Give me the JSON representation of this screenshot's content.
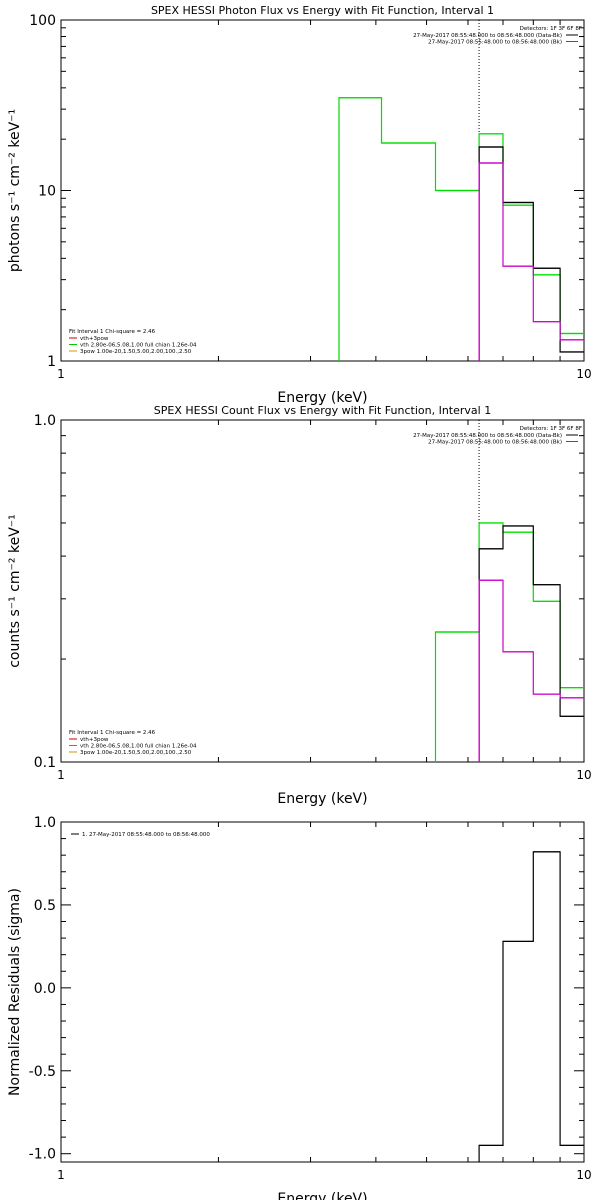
{
  "chart_data": [
    {
      "type": "line",
      "style": "step",
      "title": "SPEX HESSI Photon Flux vs Energy with Fit Function, Interval 1",
      "xlabel": "Energy (keV)",
      "ylabel": "photons s⁻¹ cm⁻² keV⁻¹",
      "xscale": "log",
      "yscale": "log",
      "xlim": [
        1,
        10
      ],
      "ylim": [
        1,
        100
      ],
      "xticklabels": [
        "1",
        "10"
      ],
      "yticklabels": [
        "1",
        "10",
        "100"
      ],
      "vline_x": 6.3,
      "legend_topright": {
        "header": "Detectors: 1F 3F 6F 8F",
        "entries": [
          {
            "label": "27-May-2017 08:55:48.000 to 08:56:48.000 (Data-Bk)",
            "color": "#000000"
          },
          {
            "label": "27-May-2017 08:55:48.000 to 08:56:48.000 (Bk)",
            "color": "#cc00cc"
          }
        ]
      },
      "legend_bottomleft": {
        "header": "Fit Interval 1    Chi-square = 2.46",
        "entries": [
          {
            "label": "vth+3pow",
            "color": "#cc0000"
          },
          {
            "label": "vth 2.80e-06,5.08,1.00  full chian 1.26e-04",
            "color": "#00cc00"
          },
          {
            "label": "3pow 1.00e-20,1.50,5.00,2.00,100.,2.50",
            "color": "#cc9900"
          }
        ]
      },
      "series": [
        {
          "color": "#00dd00",
          "edges": [
            3.4,
            4.1,
            5.2,
            6.3,
            7.0,
            8.0,
            9.0,
            10.0
          ],
          "values": [
            35,
            19,
            10,
            21.5,
            8.2,
            3.2,
            1.45
          ]
        },
        {
          "color": "#000000",
          "edges": [
            6.3,
            7.0,
            8.0,
            9.0,
            10.0
          ],
          "values": [
            18,
            8.5,
            3.5,
            1.13
          ]
        },
        {
          "color": "#cc00cc",
          "edges": [
            6.3,
            7.0,
            8.0,
            9.0,
            10.0
          ],
          "values": [
            14.5,
            3.6,
            1.7,
            1.33
          ]
        }
      ]
    },
    {
      "type": "line",
      "style": "step",
      "title": "SPEX HESSI Count Flux vs Energy with Fit Function, Interval 1",
      "xlabel": "Energy (keV)",
      "ylabel": "counts s⁻¹ cm⁻² keV⁻¹",
      "xscale": "log",
      "yscale": "log",
      "xlim": [
        1,
        10
      ],
      "ylim": [
        0.1,
        1.0
      ],
      "xticklabels": [
        "1",
        "10"
      ],
      "yticklabels": [
        "0.1",
        "1.0"
      ],
      "vline_x": 6.3,
      "legend_topright": {
        "header": "Detectors: 1F 3F 6F 8F",
        "entries": [
          {
            "label": "27-May-2017 08:55:48.000 to 08:56:48.000 (Data-Bk)",
            "color": "#000000"
          },
          {
            "label": "27-May-2017 08:55:48.000 to 08:56:48.000 (Bk)",
            "color": "#cc00cc"
          }
        ]
      },
      "legend_bottomleft": {
        "header": "Fit Interval 1    Chi-square = 2.46",
        "entries": [
          {
            "label": "vth+3pow",
            "color": "#cc0000"
          },
          {
            "label": "vth 2.80e-06,5.08,1.00  full chian 1.26e-04",
            "color": "#00cc00"
          },
          {
            "label": "3pow 1.00e-20,1.50,5.00,2.00,100.,2.50",
            "color": "#cc9900"
          }
        ]
      },
      "series": [
        {
          "color": "#00dd00",
          "edges": [
            5.2,
            6.3,
            7.0,
            8.0,
            9.0,
            10.0
          ],
          "values": [
            0.24,
            0.5,
            0.47,
            0.295,
            0.165
          ]
        },
        {
          "color": "#000000",
          "edges": [
            6.3,
            7.0,
            8.0,
            9.0,
            10.0
          ],
          "values": [
            0.42,
            0.49,
            0.33,
            0.136
          ]
        },
        {
          "color": "#cc00cc",
          "edges": [
            6.3,
            7.0,
            8.0,
            9.0,
            10.0
          ],
          "values": [
            0.34,
            0.21,
            0.158,
            0.154
          ]
        }
      ]
    },
    {
      "type": "line",
      "style": "step",
      "title": "",
      "xlabel": "Energy (keV)",
      "ylabel": "Normalized Residuals (sigma)",
      "xscale": "log",
      "yscale": "linear",
      "xlim": [
        1,
        10
      ],
      "ylim": [
        -1.05,
        1.0
      ],
      "xticklabels": [
        "1",
        "10"
      ],
      "yticks": [
        -1.0,
        -0.5,
        0.0,
        0.5,
        1.0
      ],
      "yticklabels": [
        "-1.0",
        "-0.5",
        "0.0",
        "0.5",
        "1.0"
      ],
      "legend_topleft": {
        "entries": [
          {
            "label": "1. 27-May-2017 08:55:48.000 to 08:56:48.000",
            "color": "#000000"
          }
        ]
      },
      "series": [
        {
          "color": "#000000",
          "edges": [
            6.3,
            7.0,
            8.0,
            9.0,
            10.0
          ],
          "values": [
            -0.95,
            0.28,
            0.82,
            -0.95
          ]
        }
      ]
    }
  ]
}
